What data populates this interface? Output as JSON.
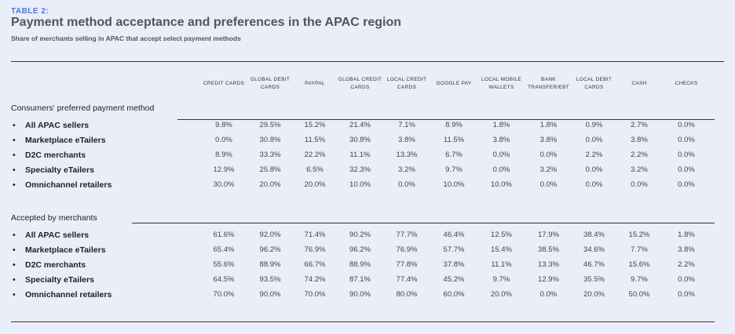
{
  "tag": "TABLE 2:",
  "title": "Payment method acceptance and preferences in the APAC region",
  "subtitle": "Share of merchants selling in APAC that accept select payment methods",
  "columns": [
    "CREDIT CARDS",
    "GLOBAL DEBIT CARDS",
    "PAYPAL",
    "GLOBAL CREDIT CARDS",
    "LOCAL CREDIT CARDS",
    "GOOGLE PAY",
    "LOCAL MOBILE WALLETS",
    "BANK TRANSFER/EBT",
    "LOCAL DEBIT CARDS",
    "CASH",
    "CHECKS"
  ],
  "sections": [
    {
      "title": "Consumers' preferred payment method",
      "rows": [
        {
          "label": "All APAC sellers",
          "values": [
            "9.8%",
            "29.5%",
            "15.2%",
            "21.4%",
            "7.1%",
            "8.9%",
            "1.8%",
            "1.8%",
            "0.9%",
            "2.7%",
            "0.0%"
          ]
        },
        {
          "label": "Marketplace eTailers",
          "values": [
            "0.0%",
            "30.8%",
            "11.5%",
            "30.8%",
            "3.8%",
            "11.5%",
            "3.8%",
            "3.8%",
            "0.0%",
            "3.8%",
            "0.0%"
          ]
        },
        {
          "label": "D2C merchants",
          "values": [
            "8.9%",
            "33.3%",
            "22.2%",
            "11.1%",
            "13.3%",
            "6.7%",
            "0.0%",
            "0.0%",
            "2.2%",
            "2.2%",
            "0.0%"
          ]
        },
        {
          "label": "Specialty eTailers",
          "values": [
            "12.9%",
            "25.8%",
            "6.5%",
            "32.3%",
            "3.2%",
            "9.7%",
            "0.0%",
            "3.2%",
            "0.0%",
            "3.2%",
            "0.0%"
          ]
        },
        {
          "label": "Omnichannel retailers",
          "values": [
            "30.0%",
            "20.0%",
            "20.0%",
            "10.0%",
            "0.0%",
            "10.0%",
            "10.0%",
            "0.0%",
            "0.0%",
            "0.0%",
            "0.0%"
          ]
        }
      ]
    },
    {
      "title": "Accepted by merchants",
      "rows": [
        {
          "label": "All APAC sellers",
          "values": [
            "61.6%",
            "92.0%",
            "71.4%",
            "90.2%",
            "77.7%",
            "46.4%",
            "12.5%",
            "17.9%",
            "38.4%",
            "15.2%",
            "1.8%"
          ]
        },
        {
          "label": "Marketplace eTailers",
          "values": [
            "65.4%",
            "96.2%",
            "76.9%",
            "96.2%",
            "76.9%",
            "57.7%",
            "15.4%",
            "38.5%",
            "34.6%",
            "7.7%",
            "3.8%"
          ]
        },
        {
          "label": "D2C merchants",
          "values": [
            "55.6%",
            "88.9%",
            "66.7%",
            "88.9%",
            "77.8%",
            "37.8%",
            "11.1%",
            "13.3%",
            "46.7%",
            "15.6%",
            "2.2%"
          ]
        },
        {
          "label": "Specialty eTailers",
          "values": [
            "64.5%",
            "93.5%",
            "74.2%",
            "87.1%",
            "77.4%",
            "45.2%",
            "9.7%",
            "12.9%",
            "35.5%",
            "9.7%",
            "0.0%"
          ]
        },
        {
          "label": "Omnichannel retailers",
          "values": [
            "70.0%",
            "90.0%",
            "70.0%",
            "90.0%",
            "80.0%",
            "60.0%",
            "20.0%",
            "0.0%",
            "20.0%",
            "50.0%",
            "0.0%"
          ]
        }
      ]
    }
  ],
  "bullet": "•"
}
